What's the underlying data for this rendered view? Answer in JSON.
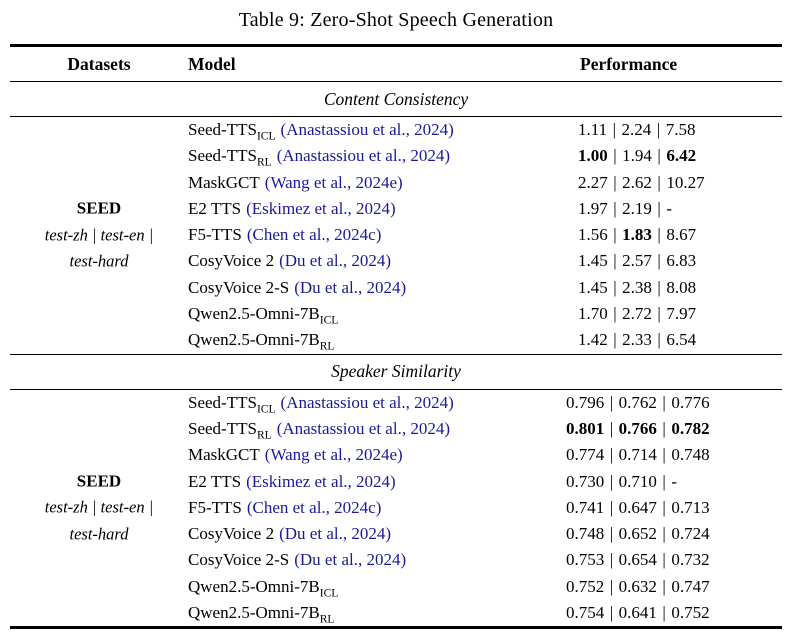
{
  "title": "Table 9: Zero-Shot Speech Generation",
  "sep": "|",
  "colors": {
    "citation_blue": "#1a1a99",
    "text_black": "#000000",
    "rule_black": "#000000"
  },
  "columns": [
    "Datasets",
    "Model",
    "Performance"
  ],
  "dataset": {
    "name": "SEED",
    "line2": "test-zh | test-en |",
    "line3": "test-hard"
  },
  "sections": [
    {
      "heading": "Content Consistency",
      "rows": [
        {
          "model": "Seed-TTS",
          "sub": "ICL",
          "citation": "(Anastassiou et al., 2024)",
          "values": [
            "1.11",
            "2.24",
            "7.58"
          ],
          "bold": [
            false,
            false,
            false
          ]
        },
        {
          "model": "Seed-TTS",
          "sub": "RL",
          "citation": "(Anastassiou et al., 2024)",
          "values": [
            "1.00",
            "1.94",
            "6.42"
          ],
          "bold": [
            true,
            false,
            true
          ]
        },
        {
          "model": "MaskGCT",
          "sub": "",
          "citation": "(Wang et al., 2024e)",
          "values": [
            "2.27",
            "2.62",
            "10.27"
          ],
          "bold": [
            false,
            false,
            false
          ]
        },
        {
          "model": "E2 TTS",
          "sub": "",
          "citation": "(Eskimez et al., 2024)",
          "values": [
            "1.97",
            "2.19",
            "-"
          ],
          "bold": [
            false,
            false,
            false
          ]
        },
        {
          "model": "F5-TTS",
          "sub": "",
          "citation": "(Chen et al., 2024c)",
          "values": [
            "1.56",
            "1.83",
            "8.67"
          ],
          "bold": [
            false,
            true,
            false
          ]
        },
        {
          "model": "CosyVoice 2",
          "sub": "",
          "citation": "(Du et al., 2024)",
          "values": [
            "1.45",
            "2.57",
            "6.83"
          ],
          "bold": [
            false,
            false,
            false
          ]
        },
        {
          "model": "CosyVoice 2-S",
          "sub": "",
          "citation": "(Du et al., 2024)",
          "values": [
            "1.45",
            "2.38",
            "8.08"
          ],
          "bold": [
            false,
            false,
            false
          ]
        },
        {
          "model": "Qwen2.5-Omni-7B",
          "sub": "ICL",
          "citation": "",
          "values": [
            "1.70",
            "2.72",
            "7.97"
          ],
          "bold": [
            false,
            false,
            false
          ]
        },
        {
          "model": "Qwen2.5-Omni-7B",
          "sub": "RL",
          "citation": "",
          "values": [
            "1.42",
            "2.33",
            "6.54"
          ],
          "bold": [
            false,
            false,
            false
          ]
        }
      ]
    },
    {
      "heading": "Speaker Similarity",
      "rows": [
        {
          "model": "Seed-TTS",
          "sub": "ICL",
          "citation": "(Anastassiou et al., 2024)",
          "values": [
            "0.796",
            "0.762",
            "0.776"
          ],
          "bold": [
            false,
            false,
            false
          ]
        },
        {
          "model": "Seed-TTS",
          "sub": "RL",
          "citation": "(Anastassiou et al., 2024)",
          "values": [
            "0.801",
            "0.766",
            "0.782"
          ],
          "bold": [
            true,
            true,
            true
          ]
        },
        {
          "model": "MaskGCT",
          "sub": "",
          "citation": "(Wang et al., 2024e)",
          "values": [
            "0.774",
            "0.714",
            "0.748"
          ],
          "bold": [
            false,
            false,
            false
          ]
        },
        {
          "model": "E2 TTS",
          "sub": "",
          "citation": "(Eskimez et al., 2024)",
          "values": [
            "0.730",
            "0.710",
            "-"
          ],
          "bold": [
            false,
            false,
            false
          ]
        },
        {
          "model": "F5-TTS",
          "sub": "",
          "citation": "(Chen et al., 2024c)",
          "values": [
            "0.741",
            "0.647",
            "0.713"
          ],
          "bold": [
            false,
            false,
            false
          ]
        },
        {
          "model": "CosyVoice 2",
          "sub": "",
          "citation": "(Du et al., 2024)",
          "values": [
            "0.748",
            "0.652",
            "0.724"
          ],
          "bold": [
            false,
            false,
            false
          ]
        },
        {
          "model": "CosyVoice 2-S",
          "sub": "",
          "citation": "(Du et al., 2024)",
          "values": [
            "0.753",
            "0.654",
            "0.732"
          ],
          "bold": [
            false,
            false,
            false
          ]
        },
        {
          "model": "Qwen2.5-Omni-7B",
          "sub": "ICL",
          "citation": "",
          "values": [
            "0.752",
            "0.632",
            "0.747"
          ],
          "bold": [
            false,
            false,
            false
          ]
        },
        {
          "model": "Qwen2.5-Omni-7B",
          "sub": "RL",
          "citation": "",
          "values": [
            "0.754",
            "0.641",
            "0.752"
          ],
          "bold": [
            false,
            false,
            false
          ]
        }
      ]
    }
  ]
}
